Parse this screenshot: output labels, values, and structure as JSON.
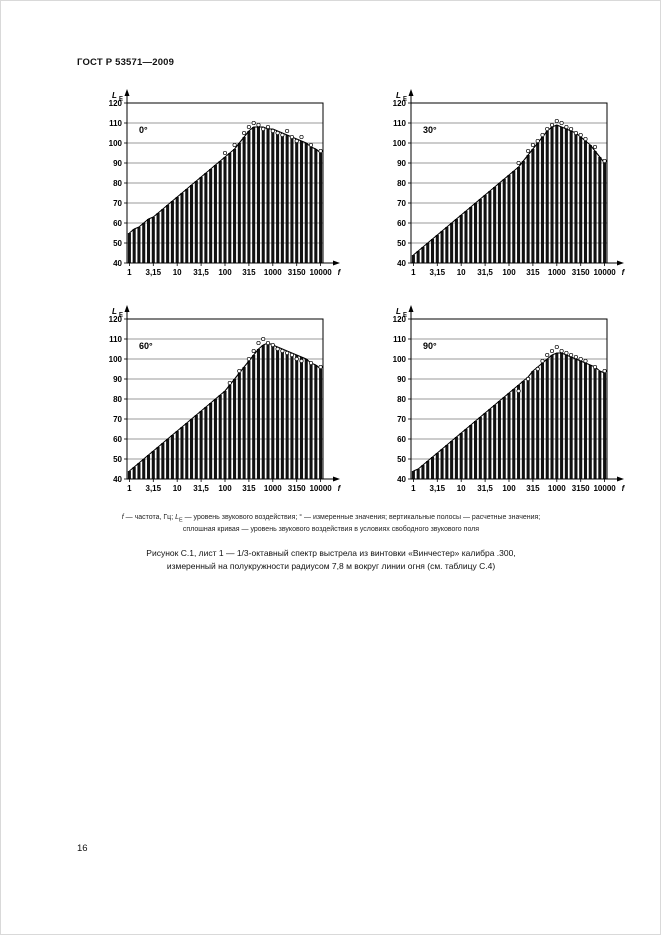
{
  "page": {
    "header": "ГОСТ Р 53571—2009",
    "page_number": "16"
  },
  "axis": {
    "y_label": "L",
    "y_label_sub": "E",
    "x_label": "f",
    "ylim": [
      40,
      120
    ],
    "grid": "horizontal",
    "y_ticks": [
      "40",
      "50",
      "60",
      "70",
      "80",
      "90",
      "100",
      "110",
      "120"
    ],
    "x_ticks": [
      "1",
      "3,15",
      "10",
      "31,5",
      "100",
      "315",
      "1000",
      "3150",
      "10000"
    ]
  },
  "caption": {
    "f_sym": "f",
    "seg1": " — частота, Гц; ",
    "L_sym": "L",
    "E_sub": "E",
    "seg2": " — уровень звукового воздействия; ° — измеренные значения; вертикальные полосы — расчетные значения;",
    "line2": "сплошная кривая — уровень звукового воздействия в условиях свободного звукового поля"
  },
  "figure": {
    "line1": "Рисунок  С.1, лист 1 — 1/3-октавный спектр выстрела из винтовки «Винчестер» калибра .300,",
    "line2": "измеренный на полукружности радиусом 7,8 м вокруг линии огня (см. таблицу С.4)"
  },
  "chart_data": [
    {
      "type": "bar",
      "label": "0°",
      "title": "Спектр выстрела, угол 0°",
      "ylabel": "LE, дБ",
      "xlabel": "f, Гц",
      "ylim": [
        40,
        120
      ],
      "x_tick_labels": [
        "1",
        "3,15",
        "10",
        "31,5",
        "100",
        "315",
        "1000",
        "3150",
        "10000"
      ],
      "bars": [
        55,
        57,
        58,
        60,
        62,
        63,
        65,
        67,
        69,
        71,
        73,
        75,
        77,
        79,
        81,
        83,
        85,
        87,
        89,
        91,
        93,
        95,
        97,
        100,
        103,
        106,
        108,
        108,
        108,
        107,
        107,
        106,
        105,
        104,
        103,
        102,
        101,
        100,
        98,
        97,
        95
      ],
      "measured": [
        [
          20,
          95
        ],
        [
          22,
          99
        ],
        [
          24,
          105
        ],
        [
          25,
          108
        ],
        [
          26,
          110
        ],
        [
          27,
          109
        ],
        [
          28,
          107
        ],
        [
          29,
          108
        ],
        [
          30,
          106
        ],
        [
          31,
          105
        ],
        [
          32,
          104
        ],
        [
          33,
          106
        ],
        [
          34,
          103
        ],
        [
          35,
          101
        ],
        [
          36,
          103
        ],
        [
          38,
          99
        ],
        [
          40,
          96
        ]
      ]
    },
    {
      "type": "bar",
      "label": "30°",
      "title": "Спектр выстрела, угол 30°",
      "ylabel": "LE, дБ",
      "xlabel": "f, Гц",
      "ylim": [
        40,
        120
      ],
      "x_tick_labels": [
        "1",
        "3,15",
        "10",
        "31,5",
        "100",
        "315",
        "1000",
        "3150",
        "10000"
      ],
      "bars": [
        44,
        46,
        48,
        50,
        52,
        54,
        56,
        58,
        60,
        62,
        64,
        66,
        68,
        70,
        72,
        74,
        76,
        78,
        80,
        82,
        84,
        86,
        88,
        91,
        94,
        97,
        100,
        103,
        106,
        108,
        109,
        108,
        107,
        106,
        105,
        103,
        101,
        99,
        96,
        93,
        90
      ],
      "measured": [
        [
          22,
          90
        ],
        [
          24,
          96
        ],
        [
          25,
          99
        ],
        [
          26,
          101
        ],
        [
          27,
          104
        ],
        [
          28,
          107
        ],
        [
          29,
          109
        ],
        [
          30,
          111
        ],
        [
          31,
          110
        ],
        [
          32,
          108
        ],
        [
          33,
          107
        ],
        [
          34,
          105
        ],
        [
          35,
          104
        ],
        [
          36,
          102
        ],
        [
          38,
          98
        ],
        [
          40,
          91
        ]
      ]
    },
    {
      "type": "bar",
      "label": "60°",
      "title": "Спектр выстрела, угол 60°",
      "ylabel": "LE, дБ",
      "xlabel": "f, Гц",
      "ylim": [
        40,
        120
      ],
      "x_tick_labels": [
        "1",
        "3,15",
        "10",
        "31,5",
        "100",
        "315",
        "1000",
        "3150",
        "10000"
      ],
      "bars": [
        44,
        46,
        48,
        50,
        52,
        54,
        56,
        58,
        60,
        62,
        64,
        66,
        68,
        70,
        72,
        74,
        76,
        78,
        80,
        82,
        84,
        87,
        90,
        93,
        96,
        99,
        102,
        105,
        107,
        108,
        107,
        106,
        105,
        104,
        103,
        102,
        101,
        100,
        98,
        97,
        95
      ],
      "measured": [
        [
          21,
          88
        ],
        [
          23,
          94
        ],
        [
          25,
          100
        ],
        [
          26,
          104
        ],
        [
          27,
          108
        ],
        [
          28,
          110
        ],
        [
          29,
          108
        ],
        [
          30,
          107
        ],
        [
          31,
          105
        ],
        [
          32,
          104
        ],
        [
          33,
          103
        ],
        [
          34,
          102
        ],
        [
          35,
          100
        ],
        [
          36,
          99
        ],
        [
          38,
          98
        ],
        [
          40,
          96
        ]
      ]
    },
    {
      "type": "bar",
      "label": "90°",
      "title": "Спектр выстрела, угол 90°",
      "ylabel": "LE, дБ",
      "xlabel": "f, Гц",
      "ylim": [
        40,
        120
      ],
      "x_tick_labels": [
        "1",
        "3,15",
        "10",
        "31,5",
        "100",
        "315",
        "1000",
        "3150",
        "10000"
      ],
      "bars": [
        44,
        45,
        47,
        49,
        51,
        53,
        55,
        57,
        59,
        61,
        63,
        65,
        67,
        69,
        71,
        73,
        75,
        77,
        79,
        81,
        83,
        85,
        87,
        89,
        91,
        94,
        96,
        98,
        100,
        102,
        103,
        103,
        102,
        101,
        100,
        99,
        98,
        97,
        96,
        94,
        93
      ],
      "measured": [
        [
          22,
          84
        ],
        [
          24,
          90
        ],
        [
          26,
          95
        ],
        [
          27,
          99
        ],
        [
          28,
          102
        ],
        [
          29,
          104
        ],
        [
          30,
          106
        ],
        [
          31,
          104
        ],
        [
          32,
          103
        ],
        [
          33,
          102
        ],
        [
          34,
          101
        ],
        [
          35,
          100
        ],
        [
          36,
          99
        ],
        [
          38,
          96
        ],
        [
          40,
          94
        ]
      ]
    }
  ]
}
